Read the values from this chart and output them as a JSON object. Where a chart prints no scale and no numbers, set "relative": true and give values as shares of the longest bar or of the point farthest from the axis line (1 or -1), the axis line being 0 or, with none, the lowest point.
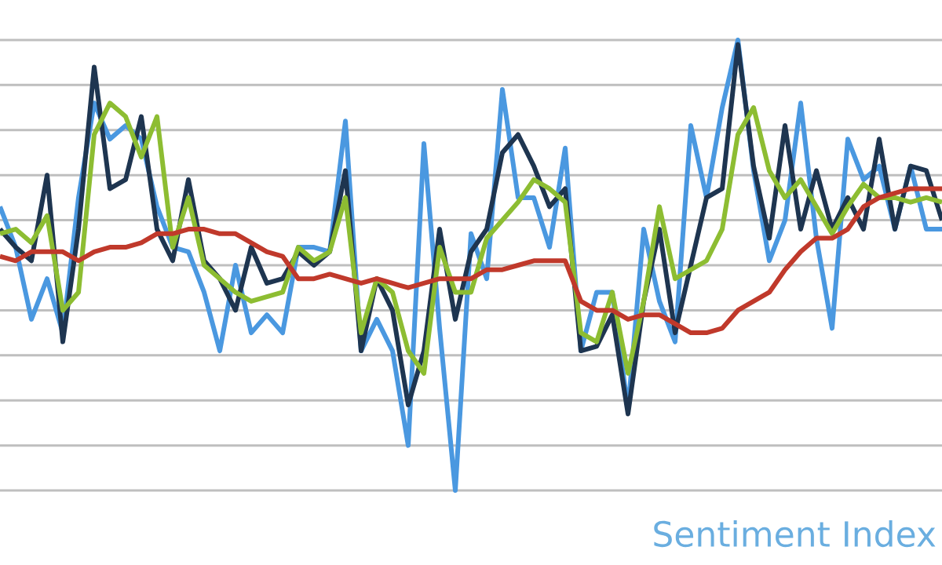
{
  "chart_data": {
    "type": "line",
    "relative": true,
    "grid": true,
    "annotations": [
      "Sentiment Index"
    ],
    "categories": [
      null,
      null,
      null,
      null,
      null,
      null,
      null,
      null,
      null,
      null,
      null,
      null,
      null,
      null,
      null,
      null,
      null,
      null,
      null,
      null,
      null,
      null,
      null,
      null,
      null,
      null,
      null,
      null,
      null,
      null,
      null,
      null,
      null,
      null,
      null,
      null,
      null,
      null,
      null,
      null,
      null,
      null,
      null,
      null,
      null,
      null,
      null,
      null,
      null,
      null,
      null,
      null,
      null,
      null,
      null,
      null,
      null,
      null,
      null,
      null,
      null
    ],
    "series": [
      {
        "color": "#4a98e0",
        "values": [
          0.63,
          0.54,
          0.38,
          0.47,
          0.35,
          0.65,
          0.86,
          0.78,
          0.81,
          0.78,
          0.63,
          0.54,
          0.53,
          0.44,
          0.31,
          0.5,
          0.35,
          0.39,
          0.35,
          0.54,
          0.54,
          0.53,
          0.82,
          0.31,
          0.38,
          0.31,
          0.1,
          0.77,
          0.36,
          0,
          0.57,
          0.47,
          0.89,
          0.65,
          0.65,
          0.54,
          0.76,
          0.31,
          0.44,
          0.44,
          0.18,
          0.58,
          0.42,
          0.33,
          0.81,
          0.65,
          0.85,
          1,
          0.71,
          0.51,
          0.6,
          0.86,
          0.56,
          0.36,
          0.78,
          0.69,
          0.72,
          0.58,
          0.72,
          0.58,
          0.58
        ]
      },
      {
        "color": "#1e3550",
        "values": [
          0.58,
          0.54,
          0.51,
          0.7,
          0.33,
          0.58,
          0.94,
          0.67,
          0.69,
          0.83,
          0.58,
          0.51,
          0.69,
          0.51,
          0.47,
          0.4,
          0.54,
          0.46,
          0.47,
          0.53,
          0.5,
          0.53,
          0.71,
          0.31,
          0.47,
          0.4,
          0.19,
          0.31,
          0.58,
          0.38,
          0.53,
          0.58,
          0.75,
          0.79,
          0.72,
          0.63,
          0.67,
          0.31,
          0.32,
          0.39,
          0.17,
          0.42,
          0.58,
          0.35,
          0.5,
          0.65,
          0.67,
          0.99,
          0.72,
          0.56,
          0.81,
          0.58,
          0.71,
          0.58,
          0.65,
          0.58,
          0.78,
          0.58,
          0.72,
          0.71,
          0.6
        ]
      },
      {
        "color": "#8dbd32",
        "values": [
          0.57,
          0.58,
          0.55,
          0.61,
          0.4,
          0.44,
          0.79,
          0.86,
          0.83,
          0.74,
          0.83,
          0.54,
          0.65,
          0.5,
          0.47,
          0.44,
          0.42,
          0.43,
          0.44,
          0.54,
          0.51,
          0.53,
          0.65,
          0.35,
          0.47,
          0.44,
          0.31,
          0.26,
          0.54,
          0.44,
          0.44,
          0.56,
          0.6,
          0.64,
          0.69,
          0.67,
          0.64,
          0.35,
          0.33,
          0.44,
          0.26,
          0.42,
          0.63,
          0.47,
          0.49,
          0.51,
          0.58,
          0.79,
          0.85,
          0.71,
          0.65,
          0.69,
          0.63,
          0.57,
          0.63,
          0.68,
          0.65,
          0.65,
          0.64,
          0.65,
          0.64
        ]
      },
      {
        "color": "#c0392b",
        "values": [
          0.52,
          0.51,
          0.53,
          0.53,
          0.53,
          0.51,
          0.53,
          0.54,
          0.54,
          0.55,
          0.57,
          0.57,
          0.58,
          0.58,
          0.57,
          0.57,
          0.55,
          0.53,
          0.52,
          0.47,
          0.47,
          0.48,
          0.47,
          0.46,
          0.47,
          0.46,
          0.45,
          0.46,
          0.47,
          0.47,
          0.47,
          0.49,
          0.49,
          0.5,
          0.51,
          0.51,
          0.51,
          0.42,
          0.4,
          0.4,
          0.38,
          0.39,
          0.39,
          0.37,
          0.35,
          0.35,
          0.36,
          0.4,
          0.42,
          0.44,
          0.49,
          0.53,
          0.56,
          0.56,
          0.58,
          0.63,
          0.65,
          0.66,
          0.67,
          0.67,
          0.67
        ]
      }
    ]
  }
}
